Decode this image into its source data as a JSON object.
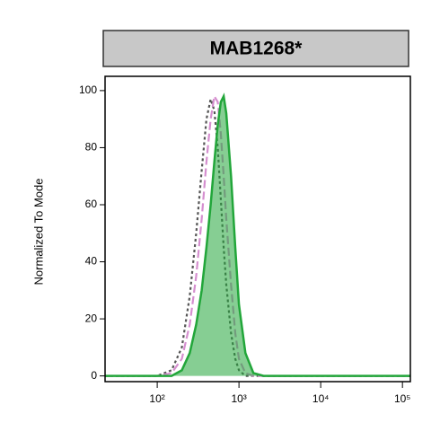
{
  "chart_data": {
    "type": "histogram-overlay",
    "title": "MAB1268*",
    "ylabel": "Normalized To Mode",
    "xscale": "log",
    "xlim": [
      23,
      125000
    ],
    "ylim": [
      -2,
      105
    ],
    "xticks": [
      {
        "value": 100,
        "label": "10²"
      },
      {
        "value": 1000,
        "label": "10³"
      },
      {
        "value": 10000,
        "label": "10⁴"
      },
      {
        "value": 100000,
        "label": "10⁵"
      }
    ],
    "yticks": [
      0,
      20,
      40,
      60,
      80,
      100
    ],
    "x": [
      23,
      100,
      150,
      200,
      250,
      300,
      350,
      400,
      450,
      500,
      550,
      600,
      650,
      700,
      800,
      900,
      1000,
      1200,
      1500,
      2000,
      125000
    ],
    "series": [
      {
        "color": "#555555",
        "style": "dotted",
        "fill": false,
        "values": [
          0,
          0,
          2,
          10,
          28,
          50,
          72,
          90,
          97,
          93,
          80,
          62,
          45,
          32,
          15,
          6,
          2,
          0,
          0,
          0,
          0
        ]
      },
      {
        "color": "#d58fcf",
        "style": "dashed",
        "fill": false,
        "values": [
          0,
          0,
          1,
          6,
          18,
          35,
          55,
          75,
          90,
          98,
          96,
          85,
          70,
          55,
          32,
          15,
          6,
          1,
          0,
          0,
          0
        ]
      },
      {
        "color": "#22a63a",
        "style": "solid",
        "fill": true,
        "values": [
          0,
          0,
          0,
          2,
          8,
          18,
          30,
          45,
          60,
          75,
          88,
          96,
          98,
          92,
          70,
          45,
          25,
          8,
          1,
          0,
          0
        ]
      }
    ]
  }
}
